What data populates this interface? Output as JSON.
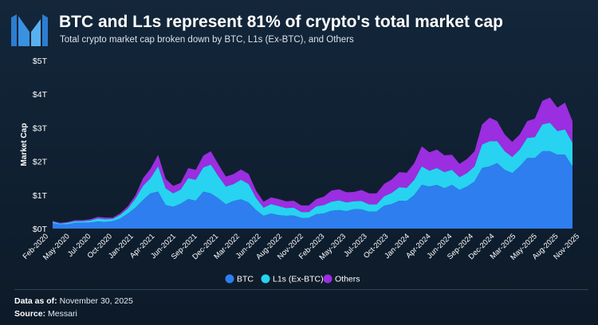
{
  "header": {
    "logo": "messari-m-logo",
    "title": "BTC and L1s represent 81% of crypto's total market cap",
    "subtitle": "Total crypto market cap broken down by BTC, L1s (Ex-BTC), and Others"
  },
  "footer": {
    "data_as_of_label": "Data as of:",
    "data_as_of_value": "November 30, 2025",
    "source_label": "Source:",
    "source_value": "Messari"
  },
  "colors": {
    "background": "#0f1d2c",
    "btc": "#2e7ef0",
    "l1s": "#27d3f0",
    "others": "#9b2ee0",
    "logo": "#4aa3e8"
  },
  "chart_data": {
    "type": "area",
    "stacked": true,
    "title": "",
    "xlabel": "",
    "ylabel": "Market Cap",
    "ylim": [
      0,
      5
    ],
    "yticks": [
      0,
      1,
      2,
      3,
      4,
      5
    ],
    "ytick_labels": [
      "$0T",
      "$1T",
      "$2T",
      "$3T",
      "$4T",
      "$5T"
    ],
    "xticks": [
      "Feb-2020",
      "May-2020",
      "Jul-2020",
      "Oct-2020",
      "Jan-2021",
      "Apr-2021",
      "Jun-2021",
      "Sep-2021",
      "Dec-2021",
      "Mar-2022",
      "Jun-2022",
      "Aug-2022",
      "Nov-2022",
      "Feb-2023",
      "May-2023",
      "Jul-2023",
      "Oct-2023",
      "Jan-2024",
      "Apr-2024",
      "Jun-2024",
      "Sep-2024",
      "Dec-2024",
      "Mar-2025",
      "May-2025",
      "Aug-2025",
      "Nov-2025"
    ],
    "grid": false,
    "legend_position": "bottom-center",
    "x": [
      "2020-02",
      "2020-03",
      "2020-04",
      "2020-05",
      "2020-06",
      "2020-07",
      "2020-08",
      "2020-09",
      "2020-10",
      "2020-11",
      "2020-12",
      "2021-01",
      "2021-02",
      "2021-03",
      "2021-04",
      "2021-05",
      "2021-06",
      "2021-07",
      "2021-08",
      "2021-09",
      "2021-10",
      "2021-11",
      "2021-12",
      "2022-01",
      "2022-02",
      "2022-03",
      "2022-04",
      "2022-05",
      "2022-06",
      "2022-07",
      "2022-08",
      "2022-09",
      "2022-10",
      "2022-11",
      "2022-12",
      "2023-01",
      "2023-02",
      "2023-03",
      "2023-04",
      "2023-05",
      "2023-06",
      "2023-07",
      "2023-08",
      "2023-09",
      "2023-10",
      "2023-11",
      "2023-12",
      "2024-01",
      "2024-02",
      "2024-03",
      "2024-04",
      "2024-05",
      "2024-06",
      "2024-07",
      "2024-08",
      "2024-09",
      "2024-10",
      "2024-11",
      "2024-12",
      "2025-01",
      "2025-02",
      "2025-03",
      "2025-04",
      "2025-05",
      "2025-06",
      "2025-07",
      "2025-08",
      "2025-09",
      "2025-10",
      "2025-11"
    ],
    "series": [
      {
        "name": "BTC",
        "color": "#2e7ef0",
        "values": [
          0.16,
          0.12,
          0.13,
          0.17,
          0.17,
          0.18,
          0.21,
          0.2,
          0.22,
          0.3,
          0.45,
          0.62,
          0.85,
          1.05,
          1.1,
          0.7,
          0.65,
          0.74,
          0.88,
          0.83,
          1.1,
          1.05,
          0.9,
          0.72,
          0.82,
          0.87,
          0.78,
          0.55,
          0.38,
          0.45,
          0.4,
          0.38,
          0.39,
          0.32,
          0.32,
          0.43,
          0.45,
          0.53,
          0.55,
          0.52,
          0.58,
          0.57,
          0.5,
          0.51,
          0.68,
          0.73,
          0.83,
          0.82,
          1.0,
          1.3,
          1.25,
          1.3,
          1.2,
          1.3,
          1.15,
          1.25,
          1.4,
          1.8,
          1.85,
          1.95,
          1.75,
          1.65,
          1.85,
          2.1,
          2.1,
          2.3,
          2.3,
          2.2,
          2.2,
          1.85
        ]
      },
      {
        "name": "L1s (Ex-BTC)",
        "color": "#27d3f0",
        "values": [
          0.04,
          0.03,
          0.04,
          0.05,
          0.05,
          0.06,
          0.09,
          0.08,
          0.07,
          0.11,
          0.15,
          0.27,
          0.42,
          0.45,
          0.75,
          0.5,
          0.4,
          0.42,
          0.62,
          0.62,
          0.72,
          0.85,
          0.66,
          0.53,
          0.5,
          0.58,
          0.55,
          0.36,
          0.24,
          0.28,
          0.27,
          0.23,
          0.23,
          0.17,
          0.17,
          0.23,
          0.25,
          0.27,
          0.29,
          0.26,
          0.23,
          0.25,
          0.22,
          0.21,
          0.28,
          0.33,
          0.4,
          0.39,
          0.45,
          0.55,
          0.47,
          0.5,
          0.48,
          0.45,
          0.38,
          0.4,
          0.45,
          0.7,
          0.75,
          0.65,
          0.55,
          0.48,
          0.5,
          0.6,
          0.62,
          0.8,
          0.85,
          0.7,
          0.75,
          0.7
        ]
      },
      {
        "name": "Others",
        "color": "#9b2ee0",
        "values": [
          0.03,
          0.02,
          0.03,
          0.03,
          0.03,
          0.04,
          0.05,
          0.05,
          0.04,
          0.05,
          0.07,
          0.1,
          0.23,
          0.28,
          0.35,
          0.28,
          0.22,
          0.2,
          0.3,
          0.3,
          0.35,
          0.4,
          0.35,
          0.3,
          0.3,
          0.31,
          0.3,
          0.22,
          0.18,
          0.2,
          0.21,
          0.2,
          0.21,
          0.2,
          0.2,
          0.22,
          0.25,
          0.33,
          0.33,
          0.3,
          0.28,
          0.33,
          0.33,
          0.33,
          0.37,
          0.4,
          0.45,
          0.45,
          0.5,
          0.6,
          0.55,
          0.55,
          0.5,
          0.45,
          0.4,
          0.42,
          0.45,
          0.6,
          0.7,
          0.6,
          0.5,
          0.45,
          0.45,
          0.5,
          0.55,
          0.7,
          0.75,
          0.7,
          0.8,
          0.65
        ]
      }
    ]
  }
}
